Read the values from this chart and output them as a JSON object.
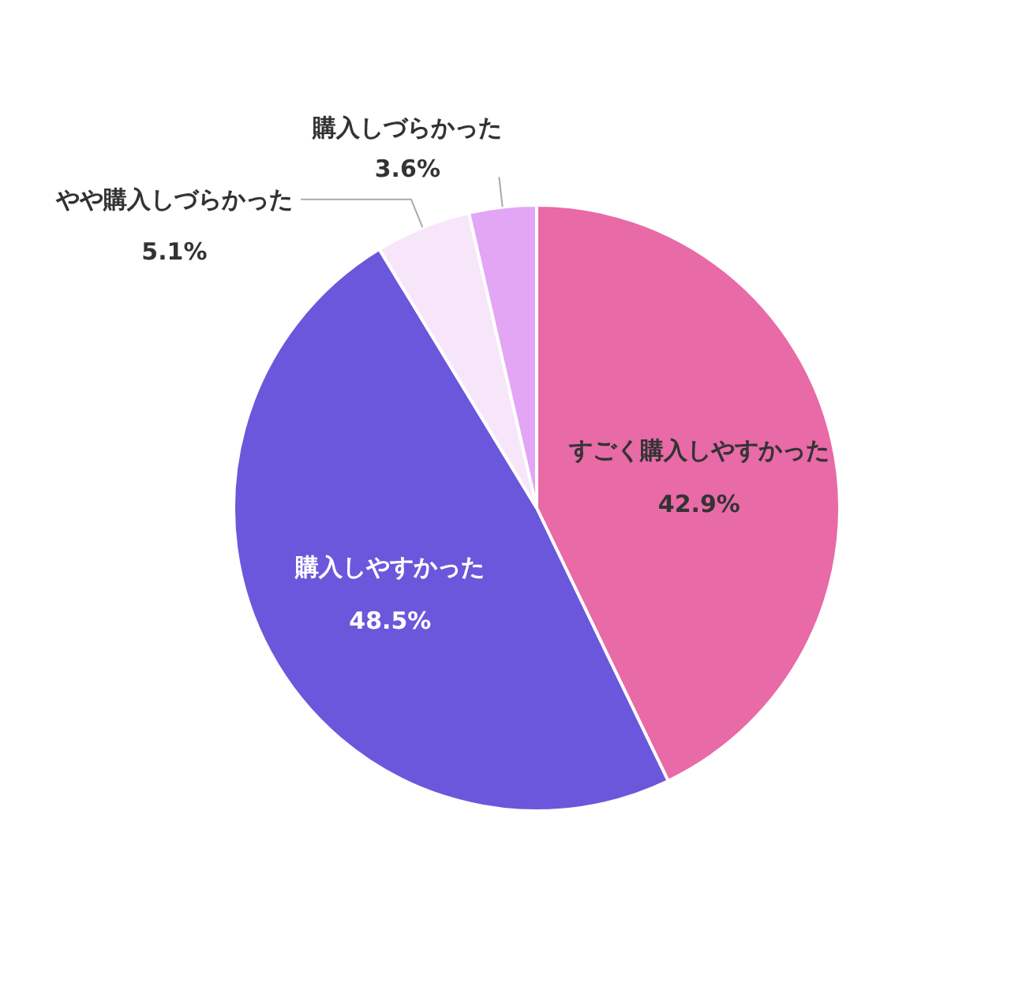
{
  "chart_data": {
    "type": "pie",
    "categories": [
      "すごく購入しやすかった",
      "購入しやすかった",
      "やや購入しづらかった",
      "購入しづらかった"
    ],
    "values": [
      42.9,
      48.5,
      5.1,
      3.6
    ],
    "value_labels": [
      "42.9%",
      "48.5%",
      "5.1%",
      "3.6%"
    ],
    "colors": [
      "#e86aa6",
      "#6b57db",
      "#f7e6fa",
      "#e2a6f5"
    ]
  }
}
